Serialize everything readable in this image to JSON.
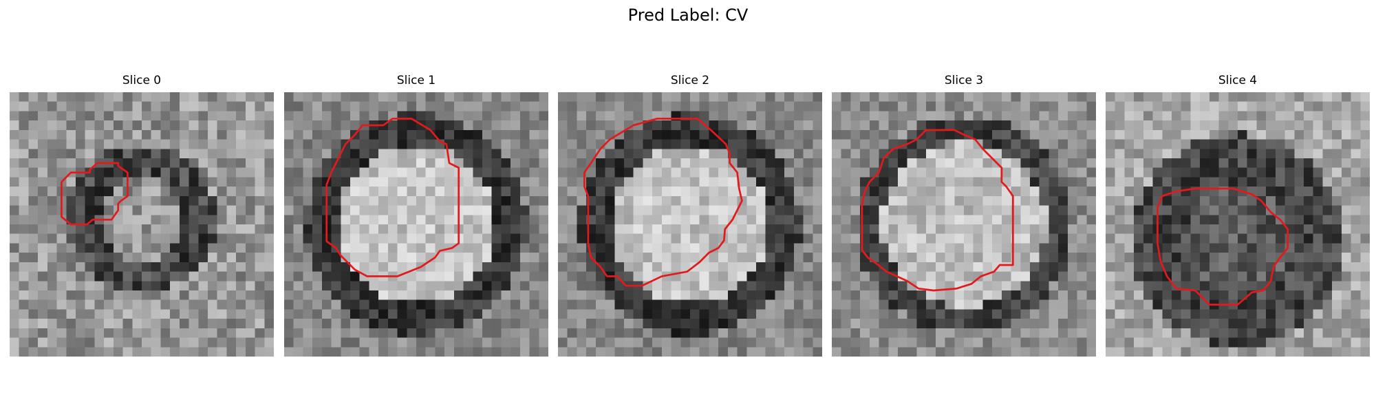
{
  "figure": {
    "title": "Pred Label: CV"
  },
  "colors": {
    "contour": "#e31a1c",
    "colormap": "grayscale"
  },
  "panels": [
    {
      "title": "Slice 0",
      "center": [
        0.5,
        0.48
      ],
      "content": "small dark-rimmed vesicle",
      "polygon": [
        [
          6.5,
          8.5
        ],
        [
          8.5,
          8.5
        ],
        [
          8.5,
          8.2
        ],
        [
          9.3,
          7.5
        ],
        [
          11.5,
          7.5
        ],
        [
          11.5,
          7.8
        ],
        [
          12.5,
          8.5
        ],
        [
          12.5,
          11.0
        ],
        [
          11.8,
          11.5
        ],
        [
          11.5,
          11.8
        ],
        [
          11.5,
          12.5
        ],
        [
          10.8,
          13.5
        ],
        [
          8.8,
          13.5
        ],
        [
          8.2,
          14.0
        ],
        [
          6.5,
          14.0
        ],
        [
          5.5,
          13.2
        ],
        [
          5.5,
          9.5
        ]
      ]
    },
    {
      "title": "Slice 1",
      "center": [
        0.5,
        0.5
      ],
      "content": "large vesicle, bright interior",
      "polygon": [
        [
          7.5,
          4.5
        ],
        [
          8.3,
          3.5
        ],
        [
          10.5,
          3.5
        ],
        [
          11.5,
          2.8
        ],
        [
          13.5,
          2.8
        ],
        [
          15.5,
          4.0
        ],
        [
          16.5,
          5.2
        ],
        [
          17.2,
          5.5
        ],
        [
          17.5,
          7.5
        ],
        [
          18.5,
          8.0
        ],
        [
          18.5,
          16.0
        ],
        [
          17.8,
          16.5
        ],
        [
          16.5,
          16.8
        ],
        [
          16.0,
          17.5
        ],
        [
          14.5,
          18.5
        ],
        [
          12.0,
          19.5
        ],
        [
          8.8,
          19.5
        ],
        [
          7.5,
          18.8
        ],
        [
          6.0,
          17.3
        ],
        [
          5.5,
          16.5
        ],
        [
          4.5,
          15.8
        ],
        [
          4.5,
          9.8
        ],
        [
          5.0,
          8.5
        ],
        [
          5.5,
          7.5
        ],
        [
          6.5,
          5.5
        ]
      ]
    },
    {
      "title": "Slice 2",
      "center": [
        0.5,
        0.5
      ],
      "content": "large vesicle, bright interior",
      "polygon": [
        [
          8.0,
          3.5
        ],
        [
          10.5,
          2.8
        ],
        [
          14.8,
          2.8
        ],
        [
          16.2,
          4.0
        ],
        [
          17.8,
          5.5
        ],
        [
          18.2,
          6.5
        ],
        [
          18.2,
          7.5
        ],
        [
          19.0,
          8.5
        ],
        [
          19.2,
          10.2
        ],
        [
          19.5,
          11.5
        ],
        [
          18.5,
          13.5
        ],
        [
          17.7,
          14.5
        ],
        [
          17.6,
          15.7
        ],
        [
          17.0,
          16.5
        ],
        [
          16.0,
          17.0
        ],
        [
          15.0,
          18.0
        ],
        [
          13.7,
          19.0
        ],
        [
          11.0,
          19.5
        ],
        [
          8.9,
          20.5
        ],
        [
          7.2,
          20.5
        ],
        [
          6.3,
          19.5
        ],
        [
          5.2,
          19.5
        ],
        [
          4.5,
          18.5
        ],
        [
          3.5,
          17.5
        ],
        [
          3.2,
          16.0
        ],
        [
          3.2,
          11.0
        ],
        [
          2.8,
          10.0
        ],
        [
          2.8,
          8.5
        ],
        [
          3.5,
          7.5
        ],
        [
          4.5,
          6.0
        ],
        [
          5.5,
          5.0
        ]
      ]
    },
    {
      "title": "Slice 3",
      "center": [
        0.5,
        0.5
      ],
      "content": "large vesicle with dark lower membrane",
      "polygon": [
        [
          9.0,
          5.0
        ],
        [
          10.0,
          4.0
        ],
        [
          13.0,
          4.0
        ],
        [
          14.0,
          4.5
        ],
        [
          15.2,
          5.0
        ],
        [
          16.0,
          6.0
        ],
        [
          17.5,
          7.5
        ],
        [
          18.0,
          8.0
        ],
        [
          18.0,
          9.5
        ],
        [
          18.5,
          10.0
        ],
        [
          19.2,
          11.0
        ],
        [
          19.2,
          18.3
        ],
        [
          17.8,
          18.3
        ],
        [
          17.2,
          19.0
        ],
        [
          15.8,
          19.5
        ],
        [
          14.8,
          20.3
        ],
        [
          13.2,
          20.8
        ],
        [
          10.8,
          21.0
        ],
        [
          9.2,
          20.8
        ],
        [
          8.0,
          20.0
        ],
        [
          5.8,
          19.0
        ],
        [
          4.8,
          18.2
        ],
        [
          3.8,
          17.5
        ],
        [
          3.2,
          16.7
        ],
        [
          3.2,
          12.0
        ],
        [
          3.5,
          10.5
        ],
        [
          4.0,
          9.5
        ],
        [
          5.0,
          8.5
        ],
        [
          5.5,
          7.0
        ],
        [
          6.5,
          6.0
        ],
        [
          8.0,
          5.5
        ]
      ]
    },
    {
      "title": "Slice 4",
      "center": [
        0.5,
        0.56
      ],
      "content": "darker vesicle region",
      "polygon": [
        [
          6.0,
          11.0
        ],
        [
          7.5,
          10.5
        ],
        [
          9.5,
          10.2
        ],
        [
          13.5,
          10.2
        ],
        [
          15.5,
          10.8
        ],
        [
          16.5,
          11.5
        ],
        [
          17.5,
          12.7
        ],
        [
          18.5,
          13.5
        ],
        [
          19.3,
          14.5
        ],
        [
          19.3,
          16.5
        ],
        [
          18.5,
          17.5
        ],
        [
          17.8,
          18.5
        ],
        [
          17.5,
          20.0
        ],
        [
          16.7,
          21.0
        ],
        [
          15.5,
          21.2
        ],
        [
          14.0,
          22.5
        ],
        [
          11.0,
          22.5
        ],
        [
          9.5,
          21.0
        ],
        [
          7.5,
          20.8
        ],
        [
          6.5,
          19.5
        ],
        [
          5.8,
          17.8
        ],
        [
          5.5,
          16.0
        ],
        [
          5.5,
          12.2
        ]
      ]
    }
  ]
}
